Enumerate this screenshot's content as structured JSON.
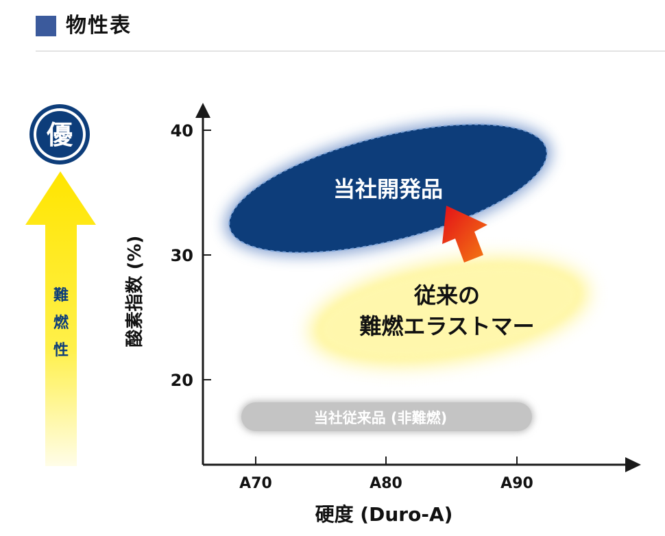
{
  "header": {
    "title": "物性表",
    "accent_color": "#3b5a9c"
  },
  "indicator": {
    "badge_text": "優",
    "arrow_label_chars": [
      "難",
      "燃",
      "性"
    ],
    "badge_color": "#0d3d7a",
    "arrow_color": "#ffea00"
  },
  "chart_data": {
    "type": "scatter",
    "xlabel": "硬度 (Duro-A)",
    "ylabel": "酸素指数 (%)",
    "x_ticks": [
      "A70",
      "A80",
      "A90"
    ],
    "y_ticks": [
      "40",
      "30",
      "20"
    ],
    "regions": [
      {
        "name": "当社開発品",
        "color": "#0d3d7a",
        "x_range": [
          "A68",
          "A92"
        ],
        "y_range": [
          30,
          40
        ]
      },
      {
        "name": "従来の難燃エラストマー",
        "lines": [
          "従来の",
          "難燃エラストマー"
        ],
        "color": "#fff8a0",
        "x_range": [
          "A78",
          "A93"
        ],
        "y_range": [
          21,
          30
        ]
      },
      {
        "name": "当社従来品 (非難燃)",
        "color": "#bfbfbf",
        "x_range": [
          "A69",
          "A91"
        ],
        "y_range": [
          17,
          18.5
        ]
      }
    ],
    "annotation_arrow": {
      "from": "従来の難燃エラストマー",
      "to": "当社開発品",
      "color": "#e8210f"
    }
  }
}
